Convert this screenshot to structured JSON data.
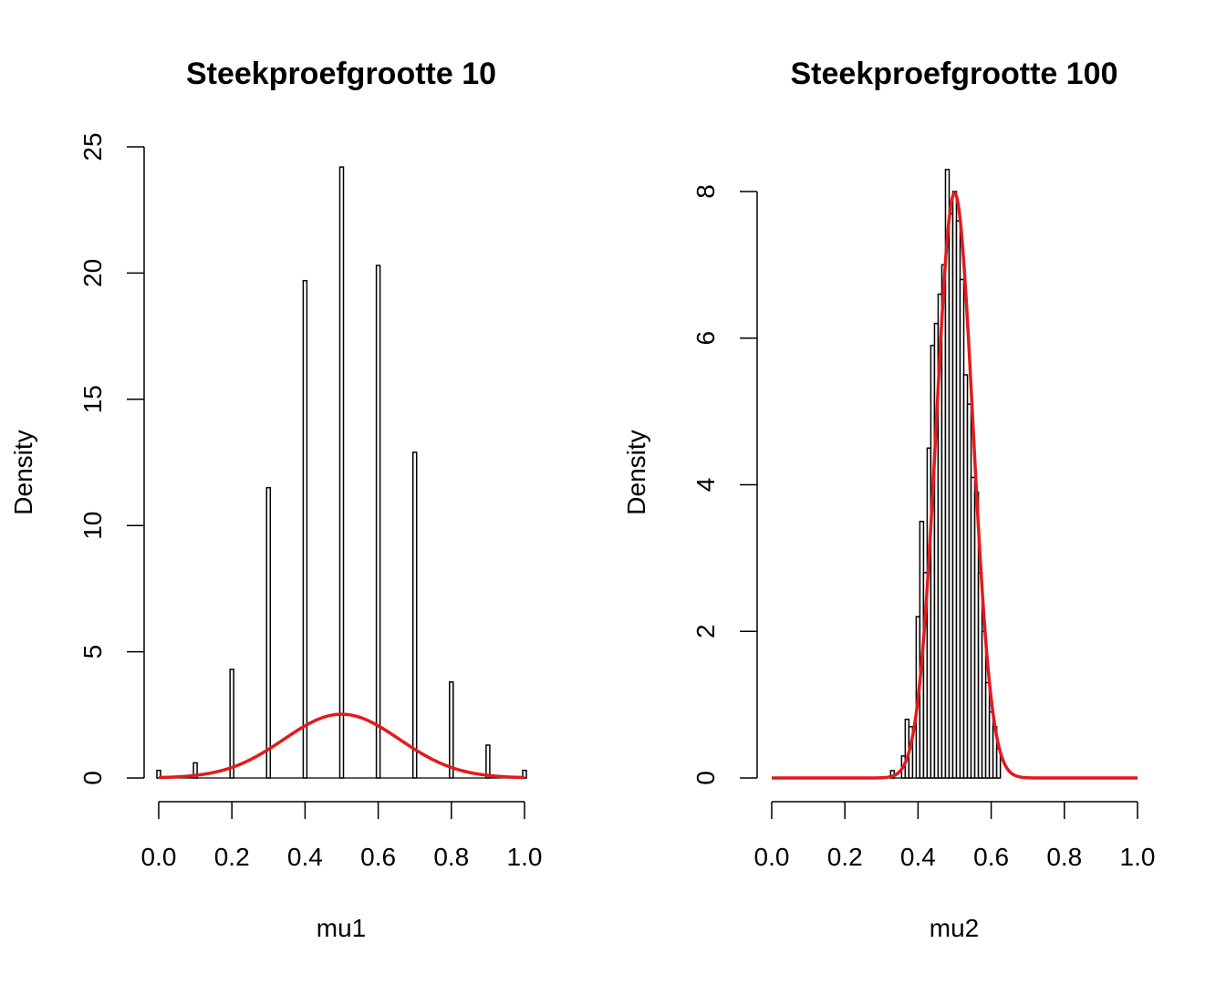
{
  "chart_data": [
    {
      "type": "histogram",
      "title": "Steekproefgrootte 10",
      "xlabel": "mu1",
      "ylabel": "Density",
      "xlim": [
        0,
        1
      ],
      "ylim": [
        0,
        25
      ],
      "xticks": [
        "0.0",
        "0.2",
        "0.4",
        "0.6",
        "0.8",
        "1.0"
      ],
      "yticks": [
        "0",
        "5",
        "10",
        "15",
        "20",
        "25"
      ],
      "bin_width": 0.01,
      "bars": [
        {
          "x": 0.0,
          "y": 0.3
        },
        {
          "x": 0.1,
          "y": 0.6
        },
        {
          "x": 0.2,
          "y": 4.3
        },
        {
          "x": 0.3,
          "y": 11.5
        },
        {
          "x": 0.4,
          "y": 19.7
        },
        {
          "x": 0.5,
          "y": 24.2
        },
        {
          "x": 0.6,
          "y": 20.3
        },
        {
          "x": 0.7,
          "y": 12.9
        },
        {
          "x": 0.8,
          "y": 3.8
        },
        {
          "x": 0.9,
          "y": 1.3
        },
        {
          "x": 1.0,
          "y": 0.3
        }
      ],
      "curve": {
        "mean": 0.5,
        "sd": 0.158,
        "color": "#e41a1c"
      },
      "bar_color": "#ffffff",
      "bar_stroke": "#000000"
    },
    {
      "type": "histogram",
      "title": "Steekproefgrootte 100",
      "xlabel": "mu2",
      "ylabel": "Density",
      "xlim": [
        0,
        1
      ],
      "ylim": [
        0,
        8
      ],
      "xticks": [
        "0.0",
        "0.2",
        "0.4",
        "0.6",
        "0.8",
        "1.0"
      ],
      "yticks": [
        "0",
        "2",
        "4",
        "6",
        "8"
      ],
      "bin_width": 0.01,
      "bars": [
        {
          "x": 0.33,
          "y": 0.1
        },
        {
          "x": 0.36,
          "y": 0.3
        },
        {
          "x": 0.37,
          "y": 0.8
        },
        {
          "x": 0.38,
          "y": 0.7
        },
        {
          "x": 0.4,
          "y": 2.2
        },
        {
          "x": 0.41,
          "y": 3.5
        },
        {
          "x": 0.42,
          "y": 2.8
        },
        {
          "x": 0.43,
          "y": 4.5
        },
        {
          "x": 0.44,
          "y": 5.9
        },
        {
          "x": 0.45,
          "y": 6.2
        },
        {
          "x": 0.46,
          "y": 6.6
        },
        {
          "x": 0.47,
          "y": 7.0
        },
        {
          "x": 0.48,
          "y": 8.3
        },
        {
          "x": 0.49,
          "y": 7.7
        },
        {
          "x": 0.5,
          "y": 8.0
        },
        {
          "x": 0.51,
          "y": 7.6
        },
        {
          "x": 0.52,
          "y": 6.8
        },
        {
          "x": 0.53,
          "y": 5.5
        },
        {
          "x": 0.54,
          "y": 5.1
        },
        {
          "x": 0.55,
          "y": 4.1
        },
        {
          "x": 0.56,
          "y": 3.9
        },
        {
          "x": 0.57,
          "y": 2.8
        },
        {
          "x": 0.58,
          "y": 2.0
        },
        {
          "x": 0.59,
          "y": 1.3
        },
        {
          "x": 0.6,
          "y": 0.9
        },
        {
          "x": 0.61,
          "y": 0.7
        },
        {
          "x": 0.62,
          "y": 0.4
        }
      ],
      "curve": {
        "mean": 0.5,
        "sd": 0.05,
        "color": "#e41a1c"
      },
      "bar_color": "#ffffff",
      "bar_stroke": "#000000"
    }
  ]
}
